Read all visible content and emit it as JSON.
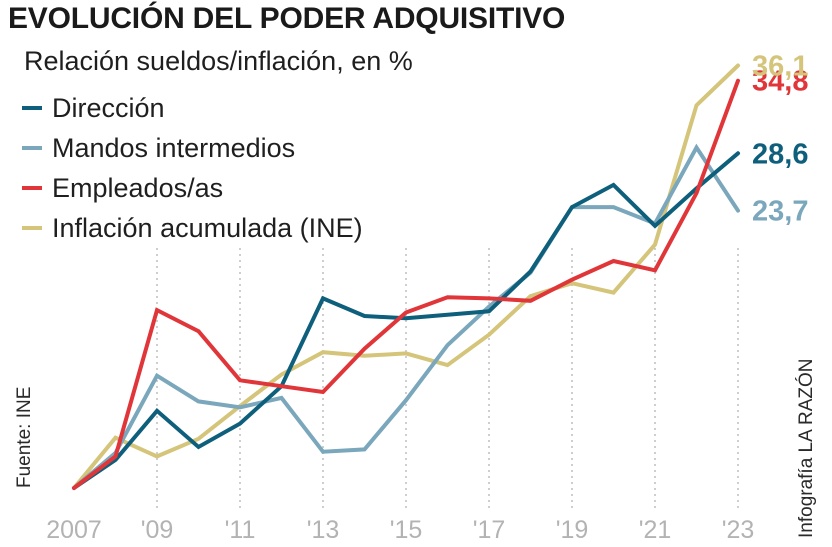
{
  "chart_data": {
    "type": "line",
    "title": "EVOLUCIÓN DEL PODER ADQUISITIVO",
    "subtitle": "Relación sueldos/inflación, en %",
    "source": "Fuente: INE",
    "credit": "Infografía LA RAZÓN",
    "x": [
      2007,
      2008,
      2009,
      2010,
      2011,
      2012,
      2013,
      2014,
      2015,
      2016,
      2017,
      2018,
      2019,
      2020,
      2021,
      2022,
      2023
    ],
    "x_tick_values": [
      2007,
      2009,
      2011,
      2013,
      2015,
      2017,
      2019,
      2021,
      2023
    ],
    "x_tick_labels": [
      "2007",
      "'09",
      "'11",
      "'13",
      "'15",
      "'17",
      "'19",
      "'21",
      "'23"
    ],
    "ylim": [
      0,
      37
    ],
    "grid": "vertical dotted",
    "legend_position": "top-left",
    "series": [
      {
        "name": "Dirección",
        "color": "#0e5f7c",
        "values": [
          0,
          2.4,
          6.6,
          3.5,
          5.5,
          8.7,
          16.2,
          14.7,
          14.5,
          14.8,
          15.1,
          18.5,
          24.0,
          25.9,
          22.4,
          25.6,
          28.6
        ],
        "end_label": "28,6"
      },
      {
        "name": "Mandos intermedios",
        "color": "#7aa7bc",
        "values": [
          0,
          3.0,
          9.6,
          7.4,
          6.9,
          7.7,
          3.1,
          3.3,
          7.5,
          12.2,
          15.5,
          18.4,
          24.0,
          24.0,
          22.6,
          29.1,
          23.7
        ],
        "end_label": "23,7"
      },
      {
        "name": "Empleados/as",
        "color": "#e0363a",
        "values": [
          0,
          2.7,
          15.2,
          13.4,
          9.2,
          8.7,
          8.2,
          11.9,
          15.0,
          16.3,
          16.2,
          16.0,
          17.8,
          19.4,
          18.6,
          25.2,
          34.8
        ],
        "end_label": "34,8"
      },
      {
        "name": "Inflación acumulada (INE)",
        "color": "#d4c57a",
        "values": [
          0,
          4.3,
          2.7,
          4.2,
          7.0,
          9.7,
          11.6,
          11.3,
          11.5,
          10.5,
          13.1,
          16.4,
          17.5,
          16.7,
          20.8,
          32.7,
          36.1
        ],
        "end_label": "36,1"
      }
    ]
  }
}
